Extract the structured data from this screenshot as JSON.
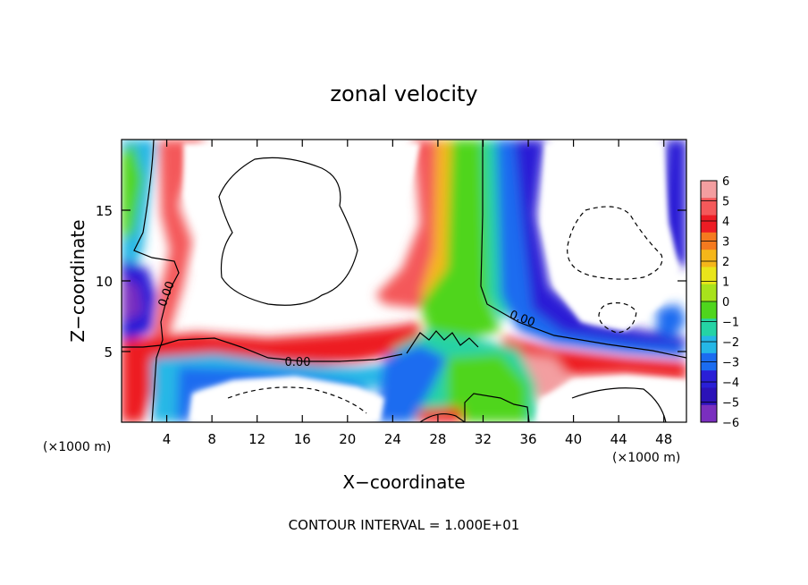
{
  "chart_data": {
    "type": "heatmap",
    "title": "zonal velocity",
    "xlabel": "X−coordinate",
    "ylabel": "Z−coordinate",
    "x_units": "(×1000 m)",
    "y_units": "(×1000 m)",
    "xlim": [
      0,
      50
    ],
    "ylim": [
      0,
      20
    ],
    "x_ticks": [
      "4",
      "8",
      "12",
      "16",
      "20",
      "24",
      "28",
      "32",
      "36",
      "40",
      "44",
      "48"
    ],
    "x_tick_values": [
      4,
      8,
      12,
      16,
      20,
      24,
      28,
      32,
      36,
      40,
      44,
      48
    ],
    "y_ticks": [
      "5",
      "10",
      "15"
    ],
    "y_tick_values": [
      5,
      10,
      15
    ],
    "colorbar": {
      "min": -6,
      "max": 6,
      "labels": [
        "6",
        "5",
        "4",
        "3",
        "2",
        "1",
        "0",
        "−1",
        "−2",
        "−3",
        "−4",
        "−5",
        "−6"
      ],
      "colors": [
        "#f39ea0",
        "#f4595a",
        "#ed1c24",
        "#f57a1f",
        "#f5b61a",
        "#e9e51a",
        "#a8e21c",
        "#4fd51d",
        "#25d3a5",
        "#25b7e6",
        "#1b6cf0",
        "#2a1fd6",
        "#2b12b8",
        "#7a2fbf"
      ]
    },
    "contour_labels": [
      "0.00",
      "0.00",
      "0.00"
    ],
    "footer": "CONTOUR INTERVAL = 1.000E+01"
  }
}
